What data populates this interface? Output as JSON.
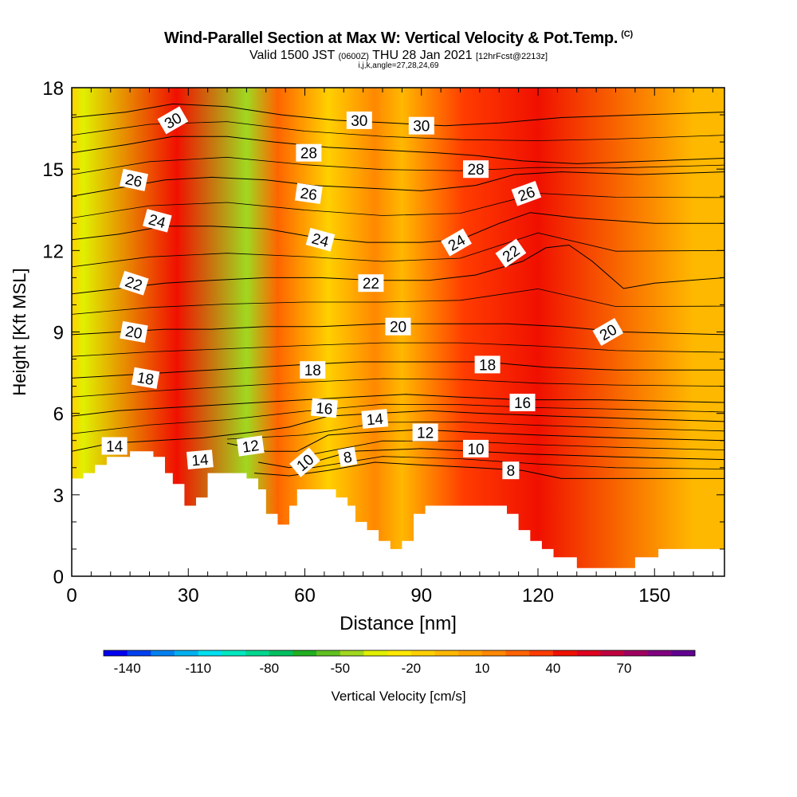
{
  "header": {
    "title": "Wind-Parallel Section at Max W: Vertical Velocity & Pot.Temp.",
    "copyright_mark": "(C)",
    "valid_prefix": "Valid 1500 JST",
    "valid_utc": "(0600Z)",
    "valid_date": "THU 28 Jan 2021",
    "forecast": "[12hrFcst@2213z]",
    "indices": "i,j,k,angle=27,28,24,69"
  },
  "chart_data": {
    "type": "heatmap",
    "xlabel": "Distance [nm]",
    "ylabel": "Height [Kft MSL]",
    "xlim": [
      0,
      168
    ],
    "ylim": [
      0,
      18
    ],
    "x_ticks": [
      0,
      30,
      60,
      90,
      120,
      150
    ],
    "y_ticks": [
      0,
      3,
      6,
      9,
      12,
      15,
      18
    ],
    "colorbar": {
      "label": "Vertical Velocity [cm/s]",
      "tick_labels": [
        -140,
        -110,
        -80,
        -50,
        -20,
        10,
        40,
        70
      ],
      "colors": [
        "#0000f0",
        "#0040f0",
        "#0080f0",
        "#00b0f0",
        "#00e0f0",
        "#00e8c0",
        "#00d890",
        "#00c060",
        "#20b020",
        "#60c020",
        "#a0d820",
        "#e0f000",
        "#ffe800",
        "#ffd000",
        "#ffb800",
        "#ffa000",
        "#ff8800",
        "#ff6400",
        "#ff3c00",
        "#f01000",
        "#e00020",
        "#c00040",
        "#a00060",
        "#800080",
        "#600090"
      ]
    },
    "velocity_bands": [
      {
        "x": 3,
        "w": -35
      },
      {
        "x": 27,
        "w": 40
      },
      {
        "x": 45,
        "w": -45
      },
      {
        "x": 53,
        "w": 25
      },
      {
        "x": 66,
        "w": -15
      },
      {
        "x": 78,
        "w": 15
      },
      {
        "x": 85,
        "w": -10
      },
      {
        "x": 101,
        "w": 35
      },
      {
        "x": 120,
        "w": 45
      },
      {
        "x": 160,
        "w": -5
      }
    ],
    "terrain": [
      [
        0,
        3.6
      ],
      [
        3,
        3.6
      ],
      [
        3,
        3.8
      ],
      [
        6,
        3.8
      ],
      [
        6,
        4.1
      ],
      [
        9,
        4.1
      ],
      [
        9,
        4.4
      ],
      [
        15,
        4.4
      ],
      [
        15,
        4.6
      ],
      [
        21,
        4.6
      ],
      [
        21,
        4.4
      ],
      [
        24,
        4.4
      ],
      [
        24,
        3.8
      ],
      [
        26,
        3.8
      ],
      [
        26,
        3.4
      ],
      [
        29,
        3.4
      ],
      [
        29,
        2.6
      ],
      [
        32,
        2.6
      ],
      [
        32,
        2.9
      ],
      [
        35,
        2.9
      ],
      [
        35,
        3.8
      ],
      [
        45,
        3.8
      ],
      [
        45,
        3.6
      ],
      [
        48,
        3.6
      ],
      [
        48,
        3.2
      ],
      [
        50,
        3.2
      ],
      [
        50,
        2.3
      ],
      [
        53,
        2.3
      ],
      [
        53,
        1.9
      ],
      [
        56,
        1.9
      ],
      [
        56,
        2.6
      ],
      [
        58,
        2.6
      ],
      [
        58,
        3.2
      ],
      [
        68,
        3.2
      ],
      [
        68,
        2.9
      ],
      [
        71,
        2.9
      ],
      [
        71,
        2.6
      ],
      [
        73,
        2.6
      ],
      [
        73,
        2.0
      ],
      [
        76,
        2.0
      ],
      [
        76,
        1.7
      ],
      [
        79,
        1.7
      ],
      [
        79,
        1.3
      ],
      [
        82,
        1.3
      ],
      [
        82,
        1.0
      ],
      [
        85,
        1.0
      ],
      [
        85,
        1.3
      ],
      [
        88,
        1.3
      ],
      [
        88,
        2.3
      ],
      [
        91,
        2.3
      ],
      [
        91,
        2.6
      ],
      [
        112,
        2.6
      ],
      [
        112,
        2.3
      ],
      [
        115,
        2.3
      ],
      [
        115,
        1.7
      ],
      [
        118,
        1.7
      ],
      [
        118,
        1.3
      ],
      [
        121,
        1.3
      ],
      [
        121,
        1.0
      ],
      [
        124,
        1.0
      ],
      [
        124,
        0.7
      ],
      [
        130,
        0.7
      ],
      [
        130,
        0.3
      ],
      [
        145,
        0.3
      ],
      [
        145,
        0.7
      ],
      [
        151,
        0.7
      ],
      [
        151,
        1.0
      ],
      [
        168,
        1.0
      ]
    ],
    "isentropes": [
      {
        "value": 8,
        "points": [
          [
            47,
            3.8
          ],
          [
            56,
            3.7
          ],
          [
            66,
            3.9
          ],
          [
            78,
            4.2
          ],
          [
            90,
            4.1
          ],
          [
            104,
            4.0
          ],
          [
            116,
            3.9
          ],
          [
            126,
            3.6
          ],
          [
            140,
            3.6
          ],
          [
            168,
            3.6
          ]
        ]
      },
      {
        "value": 10,
        "points": [
          [
            48,
            4.2
          ],
          [
            56,
            4.0
          ],
          [
            62,
            4.2
          ],
          [
            72,
            4.6
          ],
          [
            90,
            4.7
          ],
          [
            104,
            4.6
          ],
          [
            118,
            4.5
          ],
          [
            140,
            4.4
          ],
          [
            168,
            4.3
          ]
        ]
      },
      {
        "value": 12,
        "points": [
          [
            40,
            4.9
          ],
          [
            50,
            4.6
          ],
          [
            58,
            4.6
          ],
          [
            66,
            5.2
          ],
          [
            76,
            5.3
          ],
          [
            90,
            5.4
          ],
          [
            104,
            5.3
          ],
          [
            120,
            5.2
          ],
          [
            140,
            5.1
          ],
          [
            168,
            5.0
          ]
        ]
      },
      {
        "value": 14,
        "points": [
          [
            0,
            4.6
          ],
          [
            10,
            4.9
          ],
          [
            22,
            5.0
          ],
          [
            34,
            5.1
          ],
          [
            46,
            5.3
          ],
          [
            56,
            5.5
          ],
          [
            66,
            5.9
          ],
          [
            78,
            6.0
          ],
          [
            92,
            6.1
          ],
          [
            106,
            6.0
          ],
          [
            124,
            5.9
          ],
          [
            146,
            5.8
          ],
          [
            168,
            5.7
          ]
        ]
      },
      {
        "value": 16,
        "points": [
          [
            0,
            5.9
          ],
          [
            12,
            6.1
          ],
          [
            24,
            6.2
          ],
          [
            36,
            6.3
          ],
          [
            48,
            6.4
          ],
          [
            60,
            6.5
          ],
          [
            72,
            6.6
          ],
          [
            86,
            6.7
          ],
          [
            100,
            6.6
          ],
          [
            116,
            6.5
          ],
          [
            136,
            6.5
          ],
          [
            168,
            6.4
          ]
        ]
      },
      {
        "value": 18,
        "points": [
          [
            0,
            7.3
          ],
          [
            12,
            7.4
          ],
          [
            24,
            7.5
          ],
          [
            36,
            7.6
          ],
          [
            48,
            7.7
          ],
          [
            60,
            7.8
          ],
          [
            74,
            7.9
          ],
          [
            90,
            7.9
          ],
          [
            106,
            7.9
          ],
          [
            122,
            7.7
          ],
          [
            140,
            7.6
          ],
          [
            168,
            7.6
          ]
        ]
      },
      {
        "value": 20,
        "points": [
          [
            0,
            8.9
          ],
          [
            12,
            9.0
          ],
          [
            24,
            9.1
          ],
          [
            36,
            9.1
          ],
          [
            50,
            9.2
          ],
          [
            64,
            9.2
          ],
          [
            80,
            9.3
          ],
          [
            96,
            9.3
          ],
          [
            112,
            9.3
          ],
          [
            126,
            9.2
          ],
          [
            142,
            9.0
          ],
          [
            168,
            8.9
          ]
        ]
      },
      {
        "value": 22,
        "points": [
          [
            0,
            10.4
          ],
          [
            12,
            10.6
          ],
          [
            24,
            10.8
          ],
          [
            36,
            10.9
          ],
          [
            50,
            11.0
          ],
          [
            64,
            11.0
          ],
          [
            78,
            10.9
          ],
          [
            92,
            10.9
          ],
          [
            104,
            11.1
          ],
          [
            116,
            11.6
          ],
          [
            122,
            12.1
          ],
          [
            128,
            12.2
          ],
          [
            134,
            11.6
          ],
          [
            142,
            10.6
          ],
          [
            150,
            10.8
          ],
          [
            168,
            11.0
          ]
        ]
      },
      {
        "value": 24,
        "points": [
          [
            0,
            12.4
          ],
          [
            12,
            12.6
          ],
          [
            24,
            12.9
          ],
          [
            36,
            12.9
          ],
          [
            50,
            12.8
          ],
          [
            62,
            12.5
          ],
          [
            76,
            12.3
          ],
          [
            90,
            12.3
          ],
          [
            100,
            12.4
          ],
          [
            110,
            13.0
          ],
          [
            118,
            13.4
          ],
          [
            130,
            13.2
          ],
          [
            150,
            13.0
          ],
          [
            168,
            13.0
          ]
        ]
      },
      {
        "value": 26,
        "points": [
          [
            0,
            14.0
          ],
          [
            12,
            14.3
          ],
          [
            24,
            14.6
          ],
          [
            36,
            14.7
          ],
          [
            50,
            14.6
          ],
          [
            62,
            14.4
          ],
          [
            76,
            14.3
          ],
          [
            90,
            14.2
          ],
          [
            104,
            14.4
          ],
          [
            114,
            14.8
          ],
          [
            126,
            14.9
          ],
          [
            146,
            14.8
          ],
          [
            168,
            14.9
          ]
        ]
      },
      {
        "value": 28,
        "points": [
          [
            0,
            15.6
          ],
          [
            14,
            15.9
          ],
          [
            26,
            16.2
          ],
          [
            40,
            16.2
          ],
          [
            52,
            16.0
          ],
          [
            66,
            15.8
          ],
          [
            80,
            15.7
          ],
          [
            94,
            15.6
          ],
          [
            104,
            15.5
          ],
          [
            116,
            15.3
          ],
          [
            130,
            15.2
          ],
          [
            150,
            15.3
          ],
          [
            168,
            15.4
          ]
        ]
      },
      {
        "value": 30,
        "points": [
          [
            0,
            16.9
          ],
          [
            14,
            17.1
          ],
          [
            26,
            17.4
          ],
          [
            40,
            17.3
          ],
          [
            54,
            17.0
          ],
          [
            68,
            16.8
          ],
          [
            82,
            16.7
          ],
          [
            96,
            16.6
          ],
          [
            110,
            16.7
          ],
          [
            126,
            16.9
          ],
          [
            146,
            17.0
          ],
          [
            168,
            17.1
          ]
        ]
      }
    ],
    "contour_labels": [
      {
        "text": "30",
        "x": 26,
        "y": 16.8,
        "angle": -30
      },
      {
        "text": "30",
        "x": 74,
        "y": 16.8,
        "angle": 0
      },
      {
        "text": "30",
        "x": 90,
        "y": 16.6,
        "angle": 0
      },
      {
        "text": "28",
        "x": 61,
        "y": 15.6,
        "angle": 0
      },
      {
        "text": "28",
        "x": 104,
        "y": 15.0,
        "angle": 0
      },
      {
        "text": "26",
        "x": 16,
        "y": 14.6,
        "angle": 12
      },
      {
        "text": "26",
        "x": 61,
        "y": 14.1,
        "angle": 8
      },
      {
        "text": "26",
        "x": 117,
        "y": 14.1,
        "angle": -20
      },
      {
        "text": "24",
        "x": 22,
        "y": 13.1,
        "angle": 15
      },
      {
        "text": "24",
        "x": 64,
        "y": 12.4,
        "angle": 15
      },
      {
        "text": "24",
        "x": 99,
        "y": 12.3,
        "angle": -30
      },
      {
        "text": "22",
        "x": 16,
        "y": 10.8,
        "angle": 18
      },
      {
        "text": "22",
        "x": 77,
        "y": 10.8,
        "angle": 0
      },
      {
        "text": "22",
        "x": 113,
        "y": 11.9,
        "angle": -35
      },
      {
        "text": "20",
        "x": 16,
        "y": 9.0,
        "angle": 10
      },
      {
        "text": "20",
        "x": 84,
        "y": 9.2,
        "angle": 0
      },
      {
        "text": "20",
        "x": 138,
        "y": 9.0,
        "angle": -30
      },
      {
        "text": "18",
        "x": 19,
        "y": 7.3,
        "angle": 10
      },
      {
        "text": "18",
        "x": 62,
        "y": 7.6,
        "angle": 0
      },
      {
        "text": "18",
        "x": 107,
        "y": 7.8,
        "angle": 0
      },
      {
        "text": "16",
        "x": 65,
        "y": 6.2,
        "angle": 5
      },
      {
        "text": "16",
        "x": 116,
        "y": 6.4,
        "angle": 0
      },
      {
        "text": "14",
        "x": 11,
        "y": 4.8,
        "angle": 0
      },
      {
        "text": "14",
        "x": 33,
        "y": 4.3,
        "angle": -5
      },
      {
        "text": "14",
        "x": 78,
        "y": 5.8,
        "angle": -5
      },
      {
        "text": "12",
        "x": 46,
        "y": 4.8,
        "angle": -8
      },
      {
        "text": "12",
        "x": 91,
        "y": 5.3,
        "angle": 0
      },
      {
        "text": "10",
        "x": 60,
        "y": 4.2,
        "angle": -40
      },
      {
        "text": "10",
        "x": 104,
        "y": 4.7,
        "angle": 0
      },
      {
        "text": "8",
        "x": 71,
        "y": 4.4,
        "angle": -10
      },
      {
        "text": "8",
        "x": 113,
        "y": 3.9,
        "angle": 0
      }
    ]
  }
}
